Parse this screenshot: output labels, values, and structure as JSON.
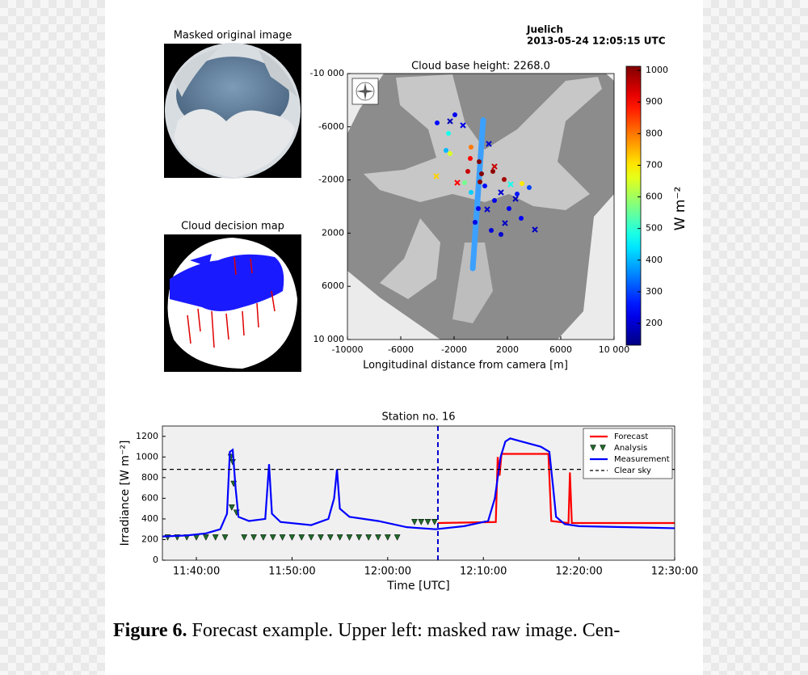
{
  "header": {
    "station": "Juelich",
    "timestamp": "2013-05-24 12:05:15 UTC"
  },
  "images": {
    "original_title": "Masked original image",
    "decision_title": "Cloud decision map"
  },
  "caption": {
    "label": "Figure 6.",
    "text": " Forecast example. Upper left: masked raw image. Cen-"
  },
  "chart_data": [
    {
      "type": "scatter",
      "title": "Cloud base height: 2268.0",
      "xlabel": "Longitudinal distance from camera [m]",
      "xlim": [
        -10000,
        10000
      ],
      "ylim": [
        10000,
        -10000
      ],
      "xticks": [
        -10000,
        -6000,
        -2000,
        2000,
        6000,
        {
          "value": 10000,
          "label": "10 000"
        }
      ],
      "yticks": [
        {
          "value": -10000,
          "label": "-10 000"
        },
        -6000,
        -2000,
        2000,
        6000,
        {
          "value": 10000,
          "label": "10 000"
        }
      ],
      "colormap": "jet",
      "clim": [
        131,
        1013
      ],
      "cticks": [
        200,
        300,
        400,
        500,
        600,
        700,
        800,
        900,
        1000
      ],
      "clabel": "W m⁻²",
      "track": {
        "x": [
          180,
          -600
        ],
        "y": [
          -6500,
          4650
        ],
        "color": "#3ca0ff"
      },
      "series": [
        {
          "marker": "circle",
          "x": [
            -3273,
            -2606,
            -1939,
            -2424,
            -788,
            909,
            1758,
            -970,
            303,
            1030,
            2121,
            3030,
            1515,
            788,
            -182,
            -424,
            2727,
            3636,
            3090,
            -727,
            -1212,
            -2303,
            -727,
            -121,
            61,
            -61
          ],
          "y": [
            -6292,
            -4225,
            -6900,
            -5500,
            -3617,
            -2644,
            -2036,
            -2644,
            -1550,
            -456,
            152,
            881,
            2097,
            1793,
            152,
            1185,
            -942,
            -1429,
            -1733,
            -1064,
            -1793,
            -3982,
            -4468,
            -3374,
            -2462,
            -1854
          ],
          "values": [
            250,
            400,
            230,
            480,
            900,
            1000,
            980,
            950,
            250,
            220,
            230,
            240,
            200,
            210,
            230,
            220,
            260,
            300,
            700,
            420,
            560,
            650,
            800,
            1010,
            1010,
            1000
          ]
        },
        {
          "marker": "cross",
          "x": [
            -3333,
            -2303,
            -1333,
            606,
            -1758,
            1030,
            1515,
            2606,
            4061,
            1818,
            485,
            2242
          ],
          "y": [
            -2280,
            -6413,
            -6109,
            -4711,
            -1793,
            -3009,
            -1064,
            -578,
            1733,
            1246,
            213,
            -1672
          ],
          "values": [
            720,
            180,
            220,
            200,
            900,
            950,
            200,
            180,
            190,
            190,
            200,
            480
          ]
        }
      ]
    },
    {
      "type": "line",
      "title": "Station no. 16",
      "xlabel": "Time [UTC]",
      "ylabel": "Irradiance [W m⁻²]",
      "xlim": [
        696.45,
        750
      ],
      "ylim": [
        0,
        1300
      ],
      "xticks": [
        {
          "value": 700,
          "label": "11:40:00"
        },
        {
          "value": 710,
          "label": "11:50:00"
        },
        {
          "value": 720,
          "label": "12:00:00"
        },
        {
          "value": 730,
          "label": "12:10:00"
        },
        {
          "value": 740,
          "label": "12:20:00"
        },
        {
          "value": 750,
          "label": "12:30:00"
        }
      ],
      "yticks": [
        0,
        200,
        400,
        600,
        800,
        1000,
        1200
      ],
      "forecast_time": 725.25,
      "legend": "upper right",
      "series": [
        {
          "name": "Forecast",
          "color": "#ff0000",
          "style": "solid",
          "x": [
            725.25,
            731.3,
            731.5,
            731.7,
            731.9,
            736.8,
            737.1,
            738.9,
            739.05,
            739.25,
            750
          ],
          "values": [
            360,
            370,
            1000,
            820,
            1030,
            1030,
            380,
            360,
            850,
            360,
            360
          ]
        },
        {
          "name": "Analysis",
          "color": "#1f6b2a",
          "style": "triangle",
          "x": [
            697,
            698,
            699,
            700,
            701,
            702,
            703,
            703.6,
            703.8,
            703.9,
            703.7,
            704.2,
            705,
            706,
            707,
            708,
            709,
            710,
            711,
            712,
            713,
            714,
            715,
            716,
            717,
            718,
            719,
            720,
            721,
            722.8,
            723.5,
            724.2,
            724.9
          ],
          "values": [
            220,
            220,
            220,
            220,
            220,
            220,
            220,
            1000,
            950,
            740,
            510,
            460,
            220,
            220,
            220,
            220,
            220,
            220,
            220,
            220,
            220,
            220,
            220,
            220,
            220,
            220,
            220,
            220,
            220,
            370,
            370,
            370,
            370
          ]
        },
        {
          "name": "Measurement",
          "color": "#0000ff",
          "style": "solid",
          "x": [
            696.45,
            699,
            701,
            702.5,
            703.2,
            703.5,
            703.8,
            704.1,
            704.4,
            705.5,
            707.2,
            707.6,
            707.9,
            708.8,
            712,
            713.8,
            714.4,
            714.7,
            715,
            716,
            719,
            722,
            725,
            728,
            730.5,
            731.2,
            731.8,
            732.3,
            732.8,
            734,
            736,
            736.9,
            737.3,
            737.6,
            738.5,
            740,
            745,
            750
          ],
          "values": [
            230,
            240,
            260,
            300,
            450,
            1050,
            1070,
            700,
            420,
            380,
            400,
            930,
            450,
            370,
            340,
            400,
            600,
            880,
            500,
            420,
            380,
            320,
            300,
            330,
            380,
            600,
            1000,
            1150,
            1180,
            1150,
            1100,
            1050,
            700,
            420,
            350,
            330,
            320,
            310
          ]
        },
        {
          "name": "Clear sky",
          "color": "#000000",
          "style": "dashed",
          "x": [
            696.45,
            750
          ],
          "values": [
            880,
            880
          ]
        }
      ]
    }
  ]
}
